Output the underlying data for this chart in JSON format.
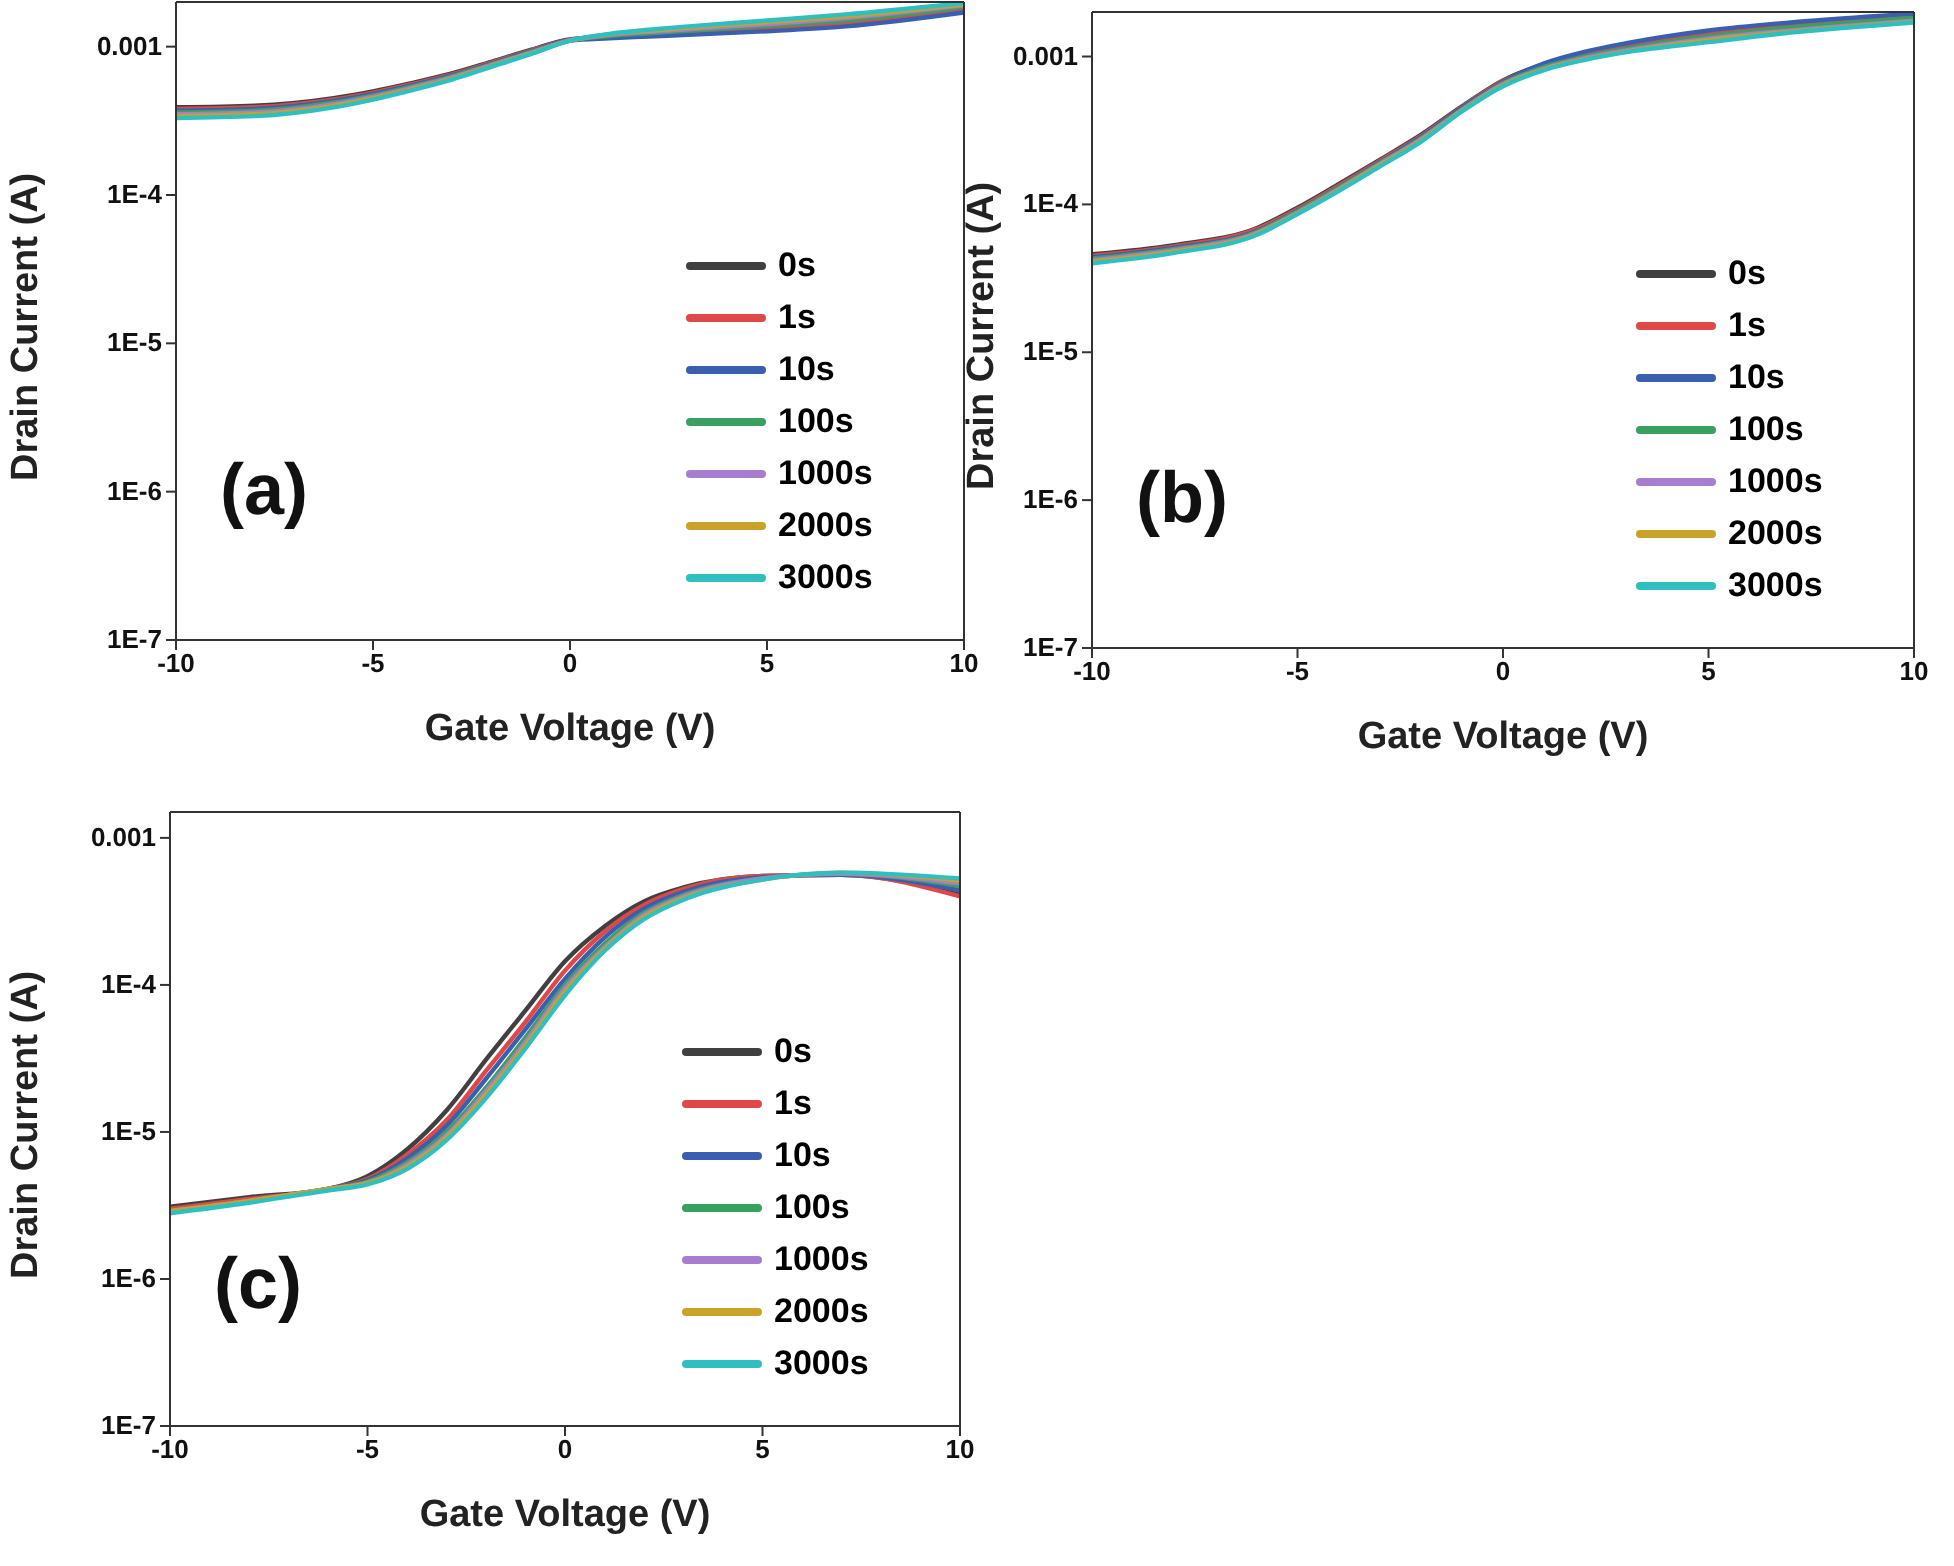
{
  "chart_data": [
    {
      "type": "line",
      "xlabel": "Gate Voltage (V)",
      "ylabel": "Drain Current (A)",
      "annotations": [
        "(a)"
      ],
      "log": "y",
      "grid": false,
      "legend": "bottom right",
      "marker": "none",
      "line_style": "solid",
      "xlim": [
        -10,
        10
      ],
      "xticks": [
        -10,
        -5,
        0,
        5,
        10
      ],
      "ylim": [
        1e-07,
        0.002
      ],
      "yticks": [
        {
          "value": 1e-07,
          "label": "1E-7"
        },
        {
          "value": 1e-06,
          "label": "1E-6"
        },
        {
          "value": 1e-05,
          "label": "1E-5"
        },
        {
          "value": 0.0001,
          "label": "1E-4"
        },
        0.001
      ],
      "x": [
        -10,
        -8,
        -6,
        -5,
        -4,
        -3,
        -2,
        -1,
        0,
        1,
        2,
        3,
        5,
        7,
        10
      ],
      "series": [
        {
          "name": "0s",
          "color": "#404040",
          "values": [
            0.00039,
            0.0004,
            0.00045,
            0.0005,
            0.00057,
            0.00066,
            0.00079,
            0.00095,
            0.00112,
            0.00116,
            0.00119,
            0.00122,
            0.0013,
            0.0014,
            0.00175
          ]
        },
        {
          "name": "1s",
          "color": "#e04848",
          "values": [
            0.00038,
            0.00039,
            0.00044,
            0.00049,
            0.00056,
            0.00065,
            0.00078,
            0.00094,
            0.00111,
            0.00116,
            0.0012,
            0.00124,
            0.00133,
            0.00144,
            0.0018
          ]
        },
        {
          "name": "10s",
          "color": "#3a5fb0",
          "values": [
            0.00037,
            0.00038,
            0.00043,
            0.00048,
            0.00055,
            0.00064,
            0.00077,
            0.00093,
            0.0011,
            0.00114,
            0.00117,
            0.0012,
            0.00127,
            0.00137,
            0.0017
          ]
        },
        {
          "name": "100s",
          "color": "#3aa060",
          "values": [
            0.00036,
            0.00037,
            0.00042,
            0.00047,
            0.00054,
            0.00063,
            0.00076,
            0.00092,
            0.0011,
            0.00118,
            0.00123,
            0.00128,
            0.00138,
            0.0015,
            0.00185
          ]
        },
        {
          "name": "1000s",
          "color": "#a77dd0",
          "values": [
            0.00035,
            0.00036,
            0.00041,
            0.00046,
            0.00053,
            0.00062,
            0.00075,
            0.00091,
            0.0011,
            0.0012,
            0.00126,
            0.00131,
            0.00142,
            0.00156,
            0.0019
          ]
        },
        {
          "name": "2000s",
          "color": "#c9a227",
          "values": [
            0.00034,
            0.00035,
            0.0004,
            0.00045,
            0.00052,
            0.00061,
            0.00074,
            0.0009,
            0.0011,
            0.00121,
            0.00128,
            0.00134,
            0.00146,
            0.0016,
            0.00193
          ]
        },
        {
          "name": "3000s",
          "color": "#30bfc0",
          "values": [
            0.00033,
            0.00034,
            0.00039,
            0.00044,
            0.00051,
            0.0006,
            0.00073,
            0.00089,
            0.0011,
            0.00122,
            0.0013,
            0.00137,
            0.0015,
            0.00165,
            0.00197
          ]
        }
      ]
    },
    {
      "type": "line",
      "xlabel": "Gate Voltage (V)",
      "ylabel": "Drain Current (A)",
      "annotations": [
        "(b)"
      ],
      "log": "y",
      "grid": false,
      "legend": "bottom right",
      "marker": "none",
      "line_style": "solid",
      "xlim": [
        -10,
        10
      ],
      "xticks": [
        -10,
        -5,
        0,
        5,
        10
      ],
      "ylim": [
        1e-07,
        0.002
      ],
      "yticks": [
        {
          "value": 1e-07,
          "label": "1E-7"
        },
        {
          "value": 1e-06,
          "label": "1E-6"
        },
        {
          "value": 1e-05,
          "label": "1E-5"
        },
        {
          "value": 0.0001,
          "label": "1E-4"
        },
        0.001
      ],
      "x": [
        -10,
        -8,
        -6,
        -5,
        -4,
        -3,
        -2,
        -1,
        0,
        1,
        2,
        3,
        5,
        7,
        10
      ],
      "series": [
        {
          "name": "0s",
          "color": "#404040",
          "values": [
            4.6e-05,
            5.3e-05,
            6.9e-05,
            9.5e-05,
            0.000137,
            0.0002,
            0.000295,
            0.00046,
            0.00069,
            0.00089,
            0.00104,
            0.00118,
            0.00142,
            0.00162,
            0.00186
          ]
        },
        {
          "name": "1s",
          "color": "#e04848",
          "values": [
            4.5e-05,
            5.2e-05,
            6.8e-05,
            9.3e-05,
            0.000134,
            0.000197,
            0.00029,
            0.000455,
            0.00068,
            0.00088,
            0.00106,
            0.00121,
            0.00146,
            0.00166,
            0.00191
          ]
        },
        {
          "name": "10s",
          "color": "#3a5fb0",
          "values": [
            4.4e-05,
            5.1e-05,
            6.6e-05,
            9.1e-05,
            0.000131,
            0.000193,
            0.000285,
            0.00045,
            0.00067,
            0.0009,
            0.00108,
            0.00123,
            0.0015,
            0.0017,
            0.00195
          ]
        },
        {
          "name": "100s",
          "color": "#3aa060",
          "values": [
            4.3e-05,
            5e-05,
            6.5e-05,
            9e-05,
            0.00013,
            0.00019,
            0.00028,
            0.00044,
            0.00066,
            0.00085,
            0.001,
            0.00113,
            0.00137,
            0.00157,
            0.00182
          ]
        },
        {
          "name": "1000s",
          "color": "#a77dd0",
          "values": [
            4.2e-05,
            4.9e-05,
            6.4e-05,
            8.8e-05,
            0.000127,
            0.000187,
            0.000275,
            0.000435,
            0.00065,
            0.00083,
            0.00098,
            0.0011,
            0.00132,
            0.0015,
            0.00175
          ]
        },
        {
          "name": "2000s",
          "color": "#c9a227",
          "values": [
            4.1e-05,
            4.8e-05,
            6.3e-05,
            8.7e-05,
            0.000125,
            0.000184,
            0.00027,
            0.00043,
            0.00064,
            0.00082,
            0.00096,
            0.00108,
            0.00129,
            0.00147,
            0.00172
          ]
        },
        {
          "name": "3000s",
          "color": "#30bfc0",
          "values": [
            4e-05,
            4.7e-05,
            6.2e-05,
            8.6e-05,
            0.000123,
            0.00018,
            0.000265,
            0.000425,
            0.00063,
            0.00081,
            0.00095,
            0.00107,
            0.00125,
            0.00145,
            0.0017
          ]
        }
      ]
    },
    {
      "type": "line",
      "xlabel": "Gate Voltage (V)",
      "ylabel": "Drain Current (A)",
      "annotations": [
        "(c)"
      ],
      "log": "y",
      "grid": false,
      "legend": "bottom right",
      "marker": "none",
      "line_style": "solid",
      "xlim": [
        -10,
        10
      ],
      "xticks": [
        -10,
        -5,
        0,
        5,
        10
      ],
      "ylim": [
        1e-07,
        0.0015
      ],
      "yticks": [
        {
          "value": 1e-07,
          "label": "1E-7"
        },
        {
          "value": 1e-06,
          "label": "1E-6"
        },
        {
          "value": 1e-05,
          "label": "1E-5"
        },
        {
          "value": 0.0001,
          "label": "1E-4"
        },
        {
          "value": 0.001,
          "label": "0.001"
        }
      ],
      "x": [
        -10,
        -8,
        -6,
        -5,
        -4,
        -3,
        -2,
        -1,
        0,
        1,
        2,
        3,
        5,
        7,
        10
      ],
      "series": [
        {
          "name": "0s",
          "color": "#404040",
          "values": [
            3.1e-06,
            3.6e-06,
            4.1e-06,
            5e-06,
            7.6e-06,
            1.4e-05,
            3.1e-05,
            6.7e-05,
            0.000145,
            0.00025,
            0.00037,
            0.00046,
            0.00055,
            0.00056,
            0.00041
          ]
        },
        {
          "name": "1s",
          "color": "#e04848",
          "values": [
            3e-06,
            3.5e-06,
            4.1e-06,
            4.8e-06,
            7e-06,
            1.2e-05,
            2.6e-05,
            5.6e-05,
            0.000125,
            0.00023,
            0.00035,
            0.00045,
            0.00055,
            0.00056,
            0.0004
          ]
        },
        {
          "name": "10s",
          "color": "#3a5fb0",
          "values": [
            2.9e-06,
            3.4e-06,
            4.1e-06,
            4.7e-06,
            6.6e-06,
            1.1e-05,
            2.3e-05,
            5e-05,
            0.00011,
            0.00021,
            0.00033,
            0.00043,
            0.00054,
            0.00056,
            0.00044
          ]
        },
        {
          "name": "100s",
          "color": "#3aa060",
          "values": [
            2.9e-06,
            3.4e-06,
            4.1e-06,
            4.6e-06,
            6.2e-06,
            1e-05,
            2e-05,
            4.4e-05,
            0.0001,
            0.00019,
            0.00031,
            0.00041,
            0.00053,
            0.00057,
            0.00047
          ]
        },
        {
          "name": "1000s",
          "color": "#a77dd0",
          "values": [
            2.9e-06,
            3.4e-06,
            4.1e-06,
            4.5e-06,
            6e-06,
            9.5e-06,
            1.9e-05,
            4.1e-05,
            9.5e-05,
            0.00018,
            0.0003,
            0.0004,
            0.00053,
            0.00057,
            0.00049
          ]
        },
        {
          "name": "2000s",
          "color": "#c9a227",
          "values": [
            2.9e-06,
            3.4e-06,
            4.1e-06,
            4.5e-06,
            5.8e-06,
            9.2e-06,
            1.8e-05,
            3.9e-05,
            9e-05,
            0.000175,
            0.00029,
            0.00039,
            0.00052,
            0.00058,
            0.00051
          ]
        },
        {
          "name": "3000s",
          "color": "#30bfc0",
          "values": [
            2.8e-06,
            3.3e-06,
            4e-06,
            4.4e-06,
            5.6e-06,
            8.8e-06,
            1.7e-05,
            3.7e-05,
            8.5e-05,
            0.00017,
            0.00028,
            0.00038,
            0.00052,
            0.00058,
            0.00053
          ]
        }
      ]
    }
  ]
}
